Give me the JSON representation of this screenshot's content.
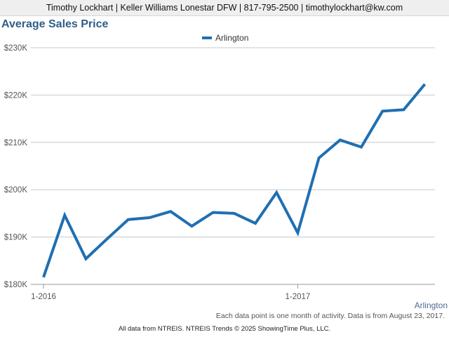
{
  "header": {
    "contact": "Timothy Lockhart | Keller Williams Lonestar DFW | 817-795-2500 | timothylockhart@kw.com"
  },
  "footnote": "Each data point is one month of activity. Data is from August 23, 2017.",
  "footer": "All data from NTREIS. NTREIS Trends © 2025 ShowingTime Plus, LLC.",
  "region_label": "Arlington",
  "colors": {
    "series": "#1f6fb2",
    "title": "#2f5d8a",
    "grid": "#c8c8c8",
    "axis_text": "#555555"
  },
  "chart_data": {
    "type": "line",
    "title": "Average Sales Price",
    "xlabel": "",
    "ylabel": "",
    "ylim": [
      180000,
      230000
    ],
    "yticks": [
      180000,
      190000,
      200000,
      210000,
      220000,
      230000
    ],
    "ytick_labels": [
      "$180K",
      "$190K",
      "$200K",
      "$210K",
      "$220K",
      "$230K"
    ],
    "xtick_labels": [
      {
        "index": 0,
        "label": "1-2016"
      },
      {
        "index": 12,
        "label": "1-2017"
      }
    ],
    "grid": true,
    "legend_position": "top-center",
    "x": [
      "2016-01",
      "2016-02",
      "2016-03",
      "2016-04",
      "2016-05",
      "2016-06",
      "2016-07",
      "2016-08",
      "2016-09",
      "2016-10",
      "2016-11",
      "2016-12",
      "2017-01",
      "2017-02",
      "2017-03",
      "2017-04",
      "2017-05",
      "2017-06",
      "2017-07"
    ],
    "series": [
      {
        "name": "Arlington",
        "values": [
          181500,
          194600,
          185400,
          189600,
          193700,
          194100,
          195400,
          192300,
          195200,
          195000,
          192900,
          199400,
          190900,
          206700,
          210500,
          209000,
          216600,
          216900,
          222300
        ]
      }
    ]
  }
}
